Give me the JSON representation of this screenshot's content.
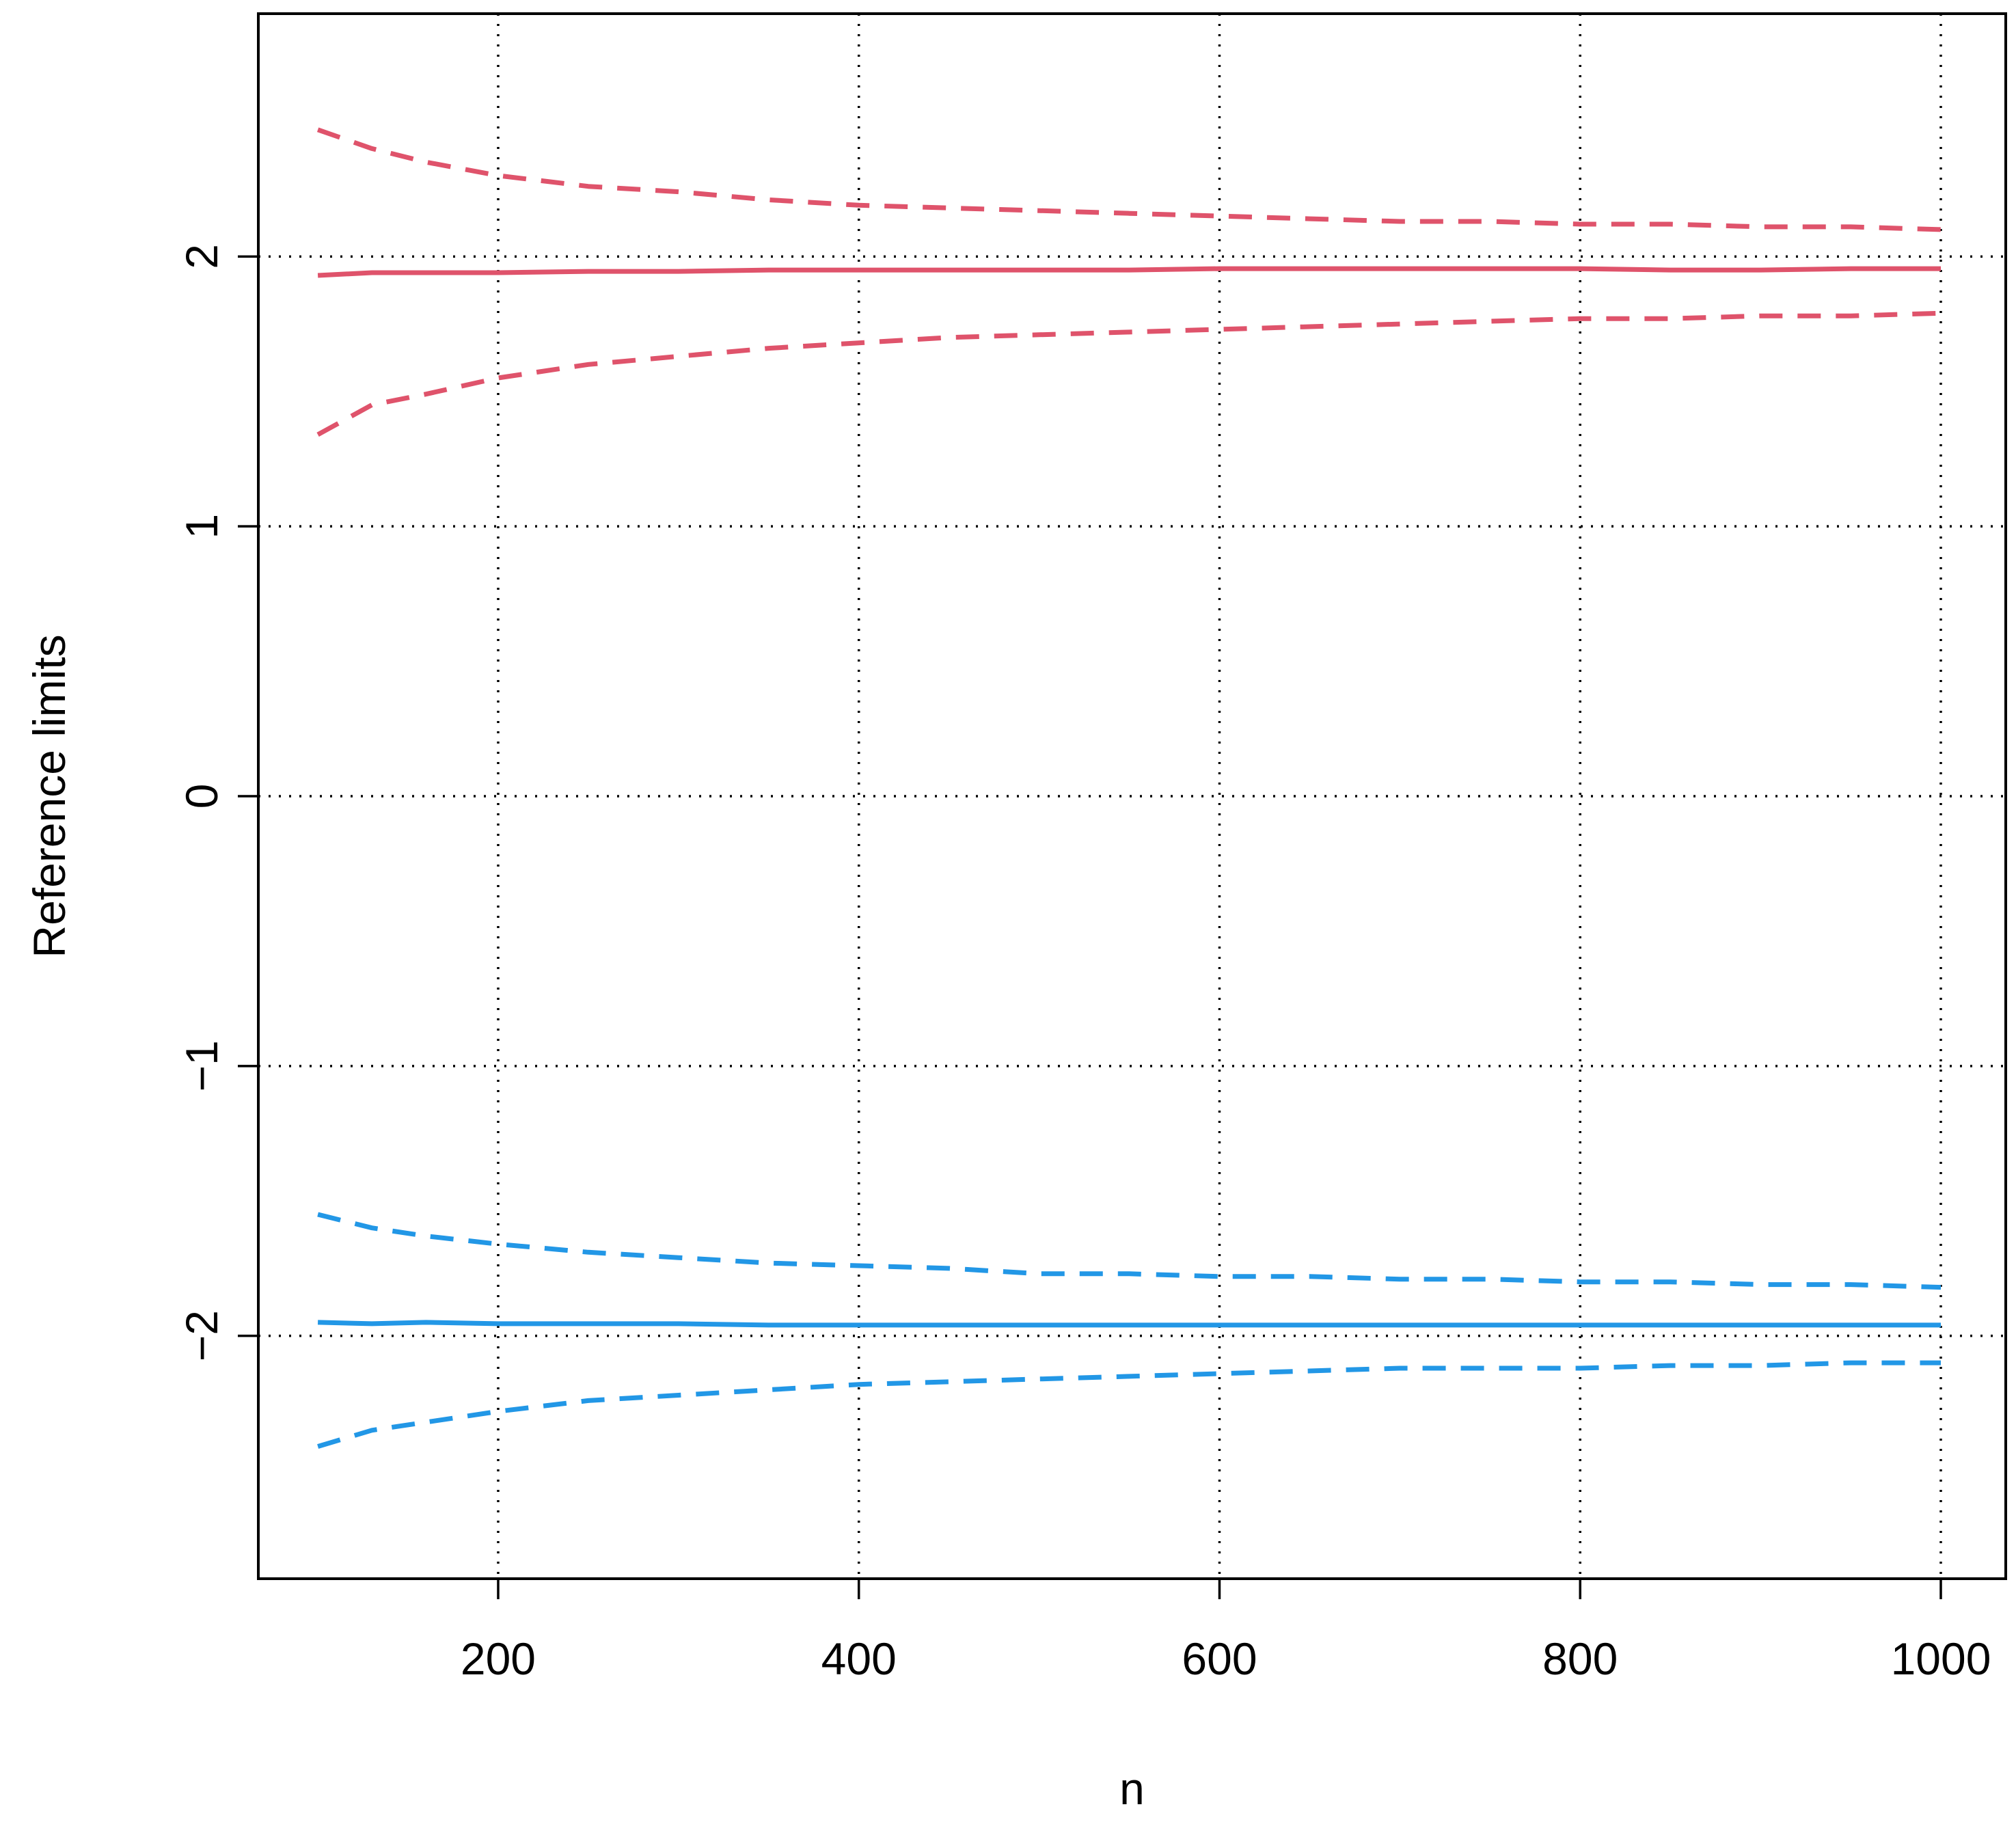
{
  "chart_data": {
    "type": "line",
    "title": "",
    "xlabel": "n",
    "ylabel": "Reference limits",
    "xlim": [
      67,
      1036
    ],
    "ylim": [
      -2.9,
      2.9
    ],
    "x_ticks": [
      200,
      400,
      600,
      800,
      1000
    ],
    "x_tick_labels": [
      "200",
      "400",
      "600",
      "800",
      "1000"
    ],
    "y_ticks": [
      -2,
      -1,
      0,
      1,
      2
    ],
    "y_tick_labels": [
      "−2",
      "−1",
      "0",
      "1",
      "2"
    ],
    "grid": true,
    "grid_style": "dotted",
    "x": [
      100,
      130,
      160,
      200,
      250,
      300,
      350,
      400,
      450,
      500,
      550,
      600,
      650,
      700,
      750,
      800,
      850,
      900,
      950,
      1000
    ],
    "series": [
      {
        "id": "upper-upper-ci",
        "color": "#DF536B",
        "dash": "dashed",
        "values": [
          2.47,
          2.4,
          2.35,
          2.3,
          2.26,
          2.24,
          2.21,
          2.19,
          2.18,
          2.17,
          2.16,
          2.15,
          2.14,
          2.13,
          2.13,
          2.12,
          2.12,
          2.11,
          2.11,
          2.1
        ]
      },
      {
        "id": "upper-estimate",
        "color": "#DF536B",
        "dash": "solid",
        "values": [
          1.93,
          1.94,
          1.94,
          1.94,
          1.945,
          1.945,
          1.95,
          1.95,
          1.95,
          1.95,
          1.95,
          1.955,
          1.955,
          1.955,
          1.955,
          1.955,
          1.95,
          1.95,
          1.955,
          1.955
        ]
      },
      {
        "id": "upper-lower-ci",
        "color": "#DF536B",
        "dash": "dashed",
        "values": [
          1.34,
          1.45,
          1.49,
          1.55,
          1.6,
          1.63,
          1.66,
          1.68,
          1.7,
          1.71,
          1.72,
          1.73,
          1.74,
          1.75,
          1.76,
          1.77,
          1.77,
          1.78,
          1.78,
          1.79
        ]
      },
      {
        "id": "lower-upper-ci",
        "color": "#2297E6",
        "dash": "dashed",
        "values": [
          -1.55,
          -1.6,
          -1.63,
          -1.66,
          -1.69,
          -1.71,
          -1.73,
          -1.74,
          -1.75,
          -1.77,
          -1.77,
          -1.78,
          -1.78,
          -1.79,
          -1.79,
          -1.8,
          -1.8,
          -1.81,
          -1.81,
          -1.82
        ]
      },
      {
        "id": "lower-estimate",
        "color": "#2297E6",
        "dash": "solid",
        "values": [
          -1.95,
          -1.955,
          -1.95,
          -1.955,
          -1.955,
          -1.955,
          -1.96,
          -1.96,
          -1.96,
          -1.96,
          -1.96,
          -1.96,
          -1.96,
          -1.96,
          -1.96,
          -1.96,
          -1.96,
          -1.96,
          -1.96,
          -1.96
        ]
      },
      {
        "id": "lower-lower-ci",
        "color": "#2297E6",
        "dash": "dashed",
        "values": [
          -2.41,
          -2.35,
          -2.32,
          -2.28,
          -2.24,
          -2.22,
          -2.2,
          -2.18,
          -2.17,
          -2.16,
          -2.15,
          -2.14,
          -2.13,
          -2.12,
          -2.12,
          -2.12,
          -2.11,
          -2.11,
          -2.1,
          -2.1
        ]
      }
    ]
  }
}
